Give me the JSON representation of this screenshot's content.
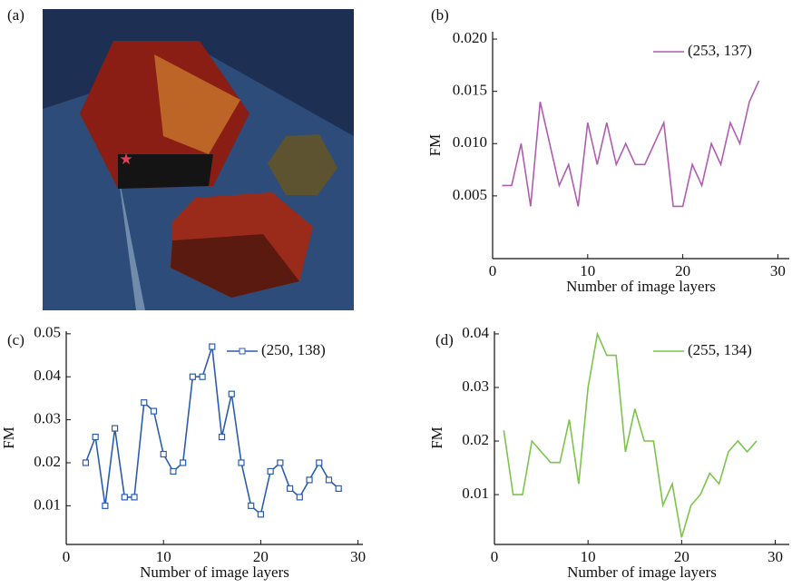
{
  "image": {
    "label": "(a)"
  },
  "chart_data": [
    {
      "type": "line",
      "label": "(b)",
      "xlabel": "Number of image layers",
      "ylabel": "FM",
      "x": [
        1,
        2,
        3,
        4,
        5,
        6,
        7,
        8,
        9,
        10,
        11,
        12,
        13,
        14,
        15,
        16,
        17,
        18,
        19,
        20,
        21,
        22,
        23,
        24,
        25,
        26,
        27,
        28
      ],
      "series": [
        {
          "name": "(253, 137)",
          "color": "#b05cb0",
          "values": [
            0.006,
            0.006,
            0.01,
            0.004,
            0.014,
            0.01,
            0.006,
            0.008,
            0.004,
            0.012,
            0.008,
            0.012,
            0.008,
            0.01,
            0.008,
            0.008,
            0.01,
            0.012,
            0.004,
            0.004,
            0.008,
            0.006,
            0.01,
            0.008,
            0.012,
            0.01,
            0.014,
            0.016
          ]
        }
      ],
      "xlim": [
        0,
        31.2
      ],
      "ylim": [
        -0.001,
        0.0207
      ],
      "xticks": [
        0,
        10,
        20,
        30
      ],
      "yticks": [
        {
          "value": 0.005,
          "label": "0.005"
        },
        {
          "value": 0.01,
          "label": "0.010"
        },
        {
          "value": 0.015,
          "label": "0.015"
        },
        {
          "value": 0.02,
          "label": "0.020"
        }
      ],
      "legend": "upper right"
    },
    {
      "type": "line",
      "label": "(c)",
      "xlabel": "Number of image layers",
      "ylabel": "FM",
      "marker": "square",
      "x": [
        2,
        3,
        4,
        5,
        6,
        7,
        8,
        9,
        10,
        11,
        12,
        13,
        14,
        15,
        16,
        17,
        18,
        19,
        20,
        21,
        22,
        23,
        24,
        25,
        26,
        27,
        28
      ],
      "series": [
        {
          "name": "(250, 138)",
          "color": "#2a5db0",
          "values": [
            0.02,
            0.026,
            0.01,
            0.028,
            0.012,
            0.012,
            0.034,
            0.032,
            0.022,
            0.018,
            0.02,
            0.04,
            0.04,
            0.047,
            0.026,
            0.036,
            0.02,
            0.01,
            0.008,
            0.018,
            0.02,
            0.014,
            0.012,
            0.016,
            0.02,
            0.016,
            0.014
          ]
        }
      ],
      "xlim": [
        0,
        30.5
      ],
      "ylim": [
        0.001,
        0.0506
      ],
      "xticks": [
        0,
        10,
        20,
        30
      ],
      "yticks": [
        0.01,
        0.02,
        0.03,
        0.04,
        0.05
      ],
      "legend": "upper right"
    },
    {
      "type": "line",
      "label": "(d)",
      "xlabel": "Number of image layers",
      "ylabel": "FM",
      "x": [
        1,
        2,
        3,
        4,
        5,
        6,
        7,
        8,
        9,
        10,
        11,
        12,
        13,
        14,
        15,
        16,
        17,
        18,
        19,
        20,
        21,
        22,
        23,
        24,
        25,
        26,
        27,
        28
      ],
      "series": [
        {
          "name": "(255, 134)",
          "color": "#7cc44c",
          "values": [
            0.022,
            0.01,
            0.01,
            0.02,
            0.018,
            0.016,
            0.016,
            0.024,
            0.012,
            0.03,
            0.04,
            0.036,
            0.036,
            0.018,
            0.026,
            0.02,
            0.02,
            0.008,
            0.012,
            0.002,
            0.008,
            0.01,
            0.014,
            0.012,
            0.018,
            0.02,
            0.018,
            0.02
          ]
        }
      ],
      "xlim": [
        0,
        31.5
      ],
      "ylim": [
        0.0007,
        0.0405
      ],
      "xticks": [
        0,
        10,
        20,
        30
      ],
      "yticks": [
        0.01,
        0.02,
        0.03,
        0.04
      ],
      "legend": "upper right"
    }
  ]
}
